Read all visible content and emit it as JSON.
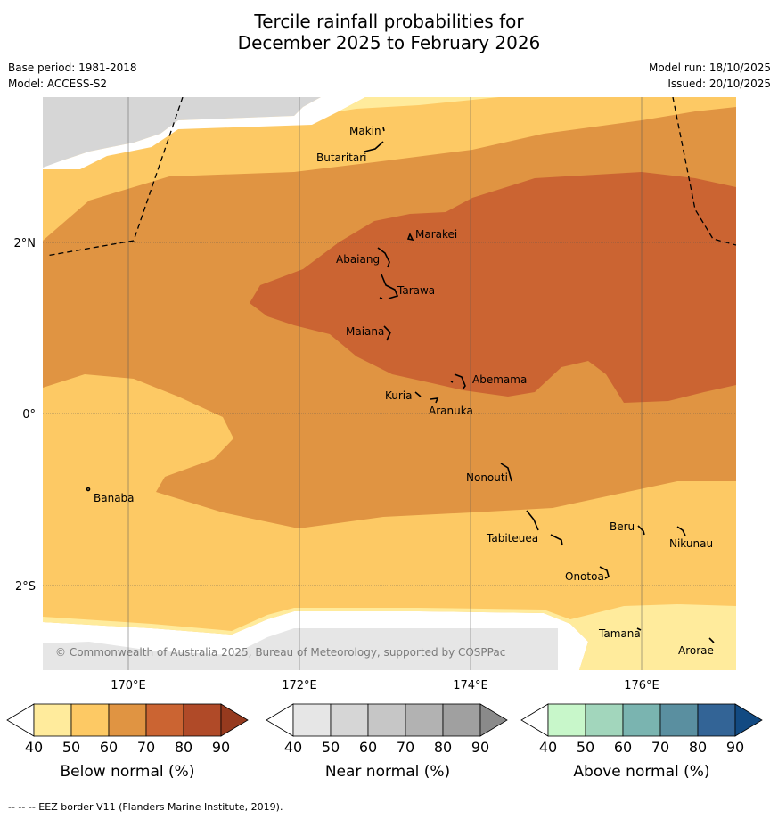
{
  "title": {
    "line1": "Tercile rainfall probabilities for",
    "line2": "December 2025 to February 2026"
  },
  "meta": {
    "base_period": "Base period: 1981-2018",
    "model": "Model: ACCESS-S2",
    "model_run": "Model run: 18/10/2025",
    "issued": "Issued: 20/10/2025"
  },
  "map": {
    "lat_labels": [
      "2°N",
      "0°",
      "2°S"
    ],
    "lon_labels": [
      "170°E",
      "172°E",
      "174°E",
      "176°E"
    ],
    "copyright": "© Commonwealth of Australia 2025, Bureau of Meteorology, supported by COSPPac",
    "islands": [
      "Makin",
      "Butaritari",
      "Marakei",
      "Abaiang",
      "Tarawa",
      "Maiana",
      "Abemama",
      "Kuria",
      "Aranuka",
      "Banaba",
      "Nonouti",
      "Beru",
      "Nikunau",
      "Tabiteuea",
      "Onotoa",
      "Tamana",
      "Arorae"
    ]
  },
  "legend": {
    "ticks": [
      "40",
      "50",
      "60",
      "70",
      "80",
      "90"
    ],
    "below": {
      "label": "Below normal (%)",
      "colors": [
        "#ffffff",
        "#ffeb9c",
        "#fdc964",
        "#e09442",
        "#cb6432",
        "#b04a28",
        "#963a1e"
      ]
    },
    "near": {
      "label": "Near normal (%)",
      "colors": [
        "#ffffff",
        "#e6e6e6",
        "#d6d6d6",
        "#c6c6c6",
        "#b2b2b2",
        "#a0a0a0",
        "#8a8a8a"
      ]
    },
    "above": {
      "label": "Above normal (%)",
      "colors": [
        "#ffffff",
        "#c8f7ca",
        "#a2d6bc",
        "#7ab4b0",
        "#5a8fa0",
        "#336496",
        "#124a82"
      ]
    }
  },
  "footer": "--  --  -- EEZ border V11 (Flanders Marine Institute, 2019)."
}
